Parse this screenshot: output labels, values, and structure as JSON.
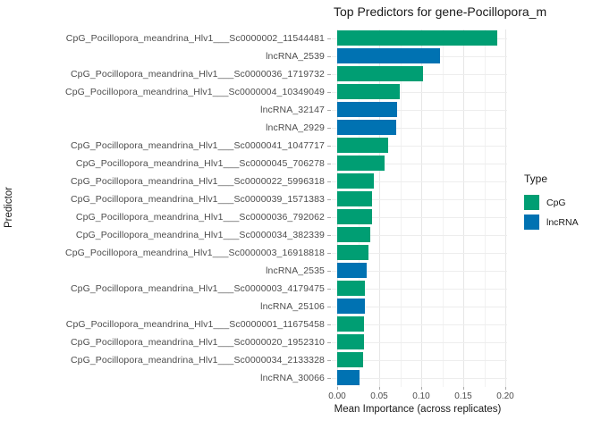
{
  "title": "Top Predictors for gene-Pocillopora_m",
  "colors": {
    "CpG": "#009E73",
    "lncRNA": "#0072B2"
  },
  "chart_data": {
    "type": "bar",
    "orientation": "horizontal",
    "title": "Top Predictors for gene-Pocillopora_m",
    "xlabel": "Mean Importance (across replicates)",
    "ylabel": "Predictor",
    "xlim": [
      0,
      0.21
    ],
    "x_tick_values": [
      0,
      0.05,
      0.1,
      0.15,
      0.2
    ],
    "x_tick_labels": [
      "0.00",
      "0.05",
      "0.10",
      "0.15",
      "0.20"
    ],
    "grid": "major+minor vertical, major horizontal",
    "legend": {
      "title": "Type",
      "position": "right",
      "entries": [
        {
          "label": "CpG",
          "color": "#009E73"
        },
        {
          "label": "lncRNA",
          "color": "#0072B2"
        }
      ]
    },
    "bars": [
      {
        "label": "CpG_Pocillopora_meandrina_Hlv1___Sc0000002_11544481",
        "type": "CpG",
        "value": 0.19
      },
      {
        "label": "lncRNA_2539",
        "type": "lncRNA",
        "value": 0.122
      },
      {
        "label": "CpG_Pocillopora_meandrina_Hlv1___Sc0000036_1719732",
        "type": "CpG",
        "value": 0.102
      },
      {
        "label": "CpG_Pocillopora_meandrina_Hlv1___Sc0000004_10349049",
        "type": "CpG",
        "value": 0.074
      },
      {
        "label": "lncRNA_32147",
        "type": "lncRNA",
        "value": 0.071
      },
      {
        "label": "lncRNA_2929",
        "type": "lncRNA",
        "value": 0.07
      },
      {
        "label": "CpG_Pocillopora_meandrina_Hlv1___Sc0000041_1047717",
        "type": "CpG",
        "value": 0.061
      },
      {
        "label": "CpG_Pocillopora_meandrina_Hlv1___Sc0000045_706278",
        "type": "CpG",
        "value": 0.056
      },
      {
        "label": "CpG_Pocillopora_meandrina_Hlv1___Sc0000022_5996318",
        "type": "CpG",
        "value": 0.044
      },
      {
        "label": "CpG_Pocillopora_meandrina_Hlv1___Sc0000039_1571383",
        "type": "CpG",
        "value": 0.042
      },
      {
        "label": "CpG_Pocillopora_meandrina_Hlv1___Sc0000036_792062",
        "type": "CpG",
        "value": 0.041
      },
      {
        "label": "CpG_Pocillopora_meandrina_Hlv1___Sc0000034_382339",
        "type": "CpG",
        "value": 0.039
      },
      {
        "label": "CpG_Pocillopora_meandrina_Hlv1___Sc0000003_16918818",
        "type": "CpG",
        "value": 0.037
      },
      {
        "label": "lncRNA_2535",
        "type": "lncRNA",
        "value": 0.035
      },
      {
        "label": "CpG_Pocillopora_meandrina_Hlv1___Sc0000003_4179475",
        "type": "CpG",
        "value": 0.033
      },
      {
        "label": "lncRNA_25106",
        "type": "lncRNA",
        "value": 0.033
      },
      {
        "label": "CpG_Pocillopora_meandrina_Hlv1___Sc0000001_11675458",
        "type": "CpG",
        "value": 0.032
      },
      {
        "label": "CpG_Pocillopora_meandrina_Hlv1___Sc0000020_1952310",
        "type": "CpG",
        "value": 0.032
      },
      {
        "label": "CpG_Pocillopora_meandrina_Hlv1___Sc0000034_2133328",
        "type": "CpG",
        "value": 0.031
      },
      {
        "label": "lncRNA_30066",
        "type": "lncRNA",
        "value": 0.027
      }
    ]
  }
}
